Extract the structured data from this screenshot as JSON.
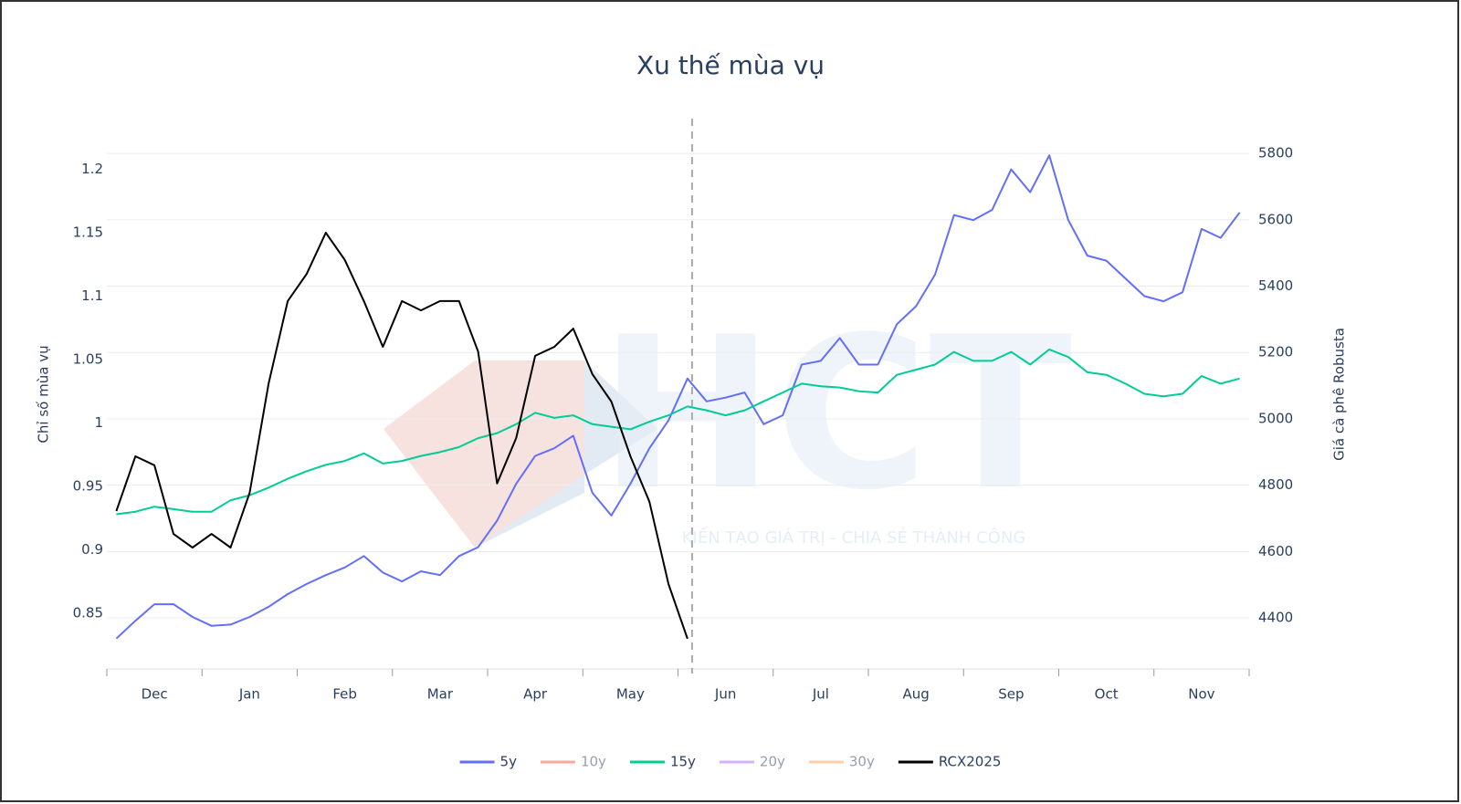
{
  "chart_data": {
    "type": "line",
    "title": "Xu thế mùa vụ",
    "y_label": "Chỉ số mùa vụ",
    "y2_label": "Giá cà phê Robusta",
    "watermark": {
      "logo": "HCT",
      "slogan": "KIẾN TẠO GIÁ TRỊ - CHIA SẺ THÀNH CÔNG"
    },
    "categories": [
      null,
      null,
      "Dec",
      null,
      null,
      null,
      null,
      "Jan",
      null,
      null,
      null,
      null,
      "Feb",
      null,
      null,
      null,
      null,
      "Mar",
      null,
      null,
      null,
      null,
      "Apr",
      null,
      null,
      null,
      null,
      "May",
      null,
      null,
      null,
      null,
      "Jun",
      null,
      null,
      null,
      null,
      "Jul",
      null,
      null,
      null,
      null,
      "Aug",
      null,
      null,
      null,
      null,
      "Sep",
      null,
      null,
      null,
      null,
      "Oct",
      null,
      null,
      null,
      null,
      "Nov",
      null,
      null
    ],
    "ylim": [
      0.806,
      1.24
    ],
    "yticks": [
      0.85,
      0.9,
      0.95,
      1,
      1.05,
      1.1,
      1.15,
      1.2
    ],
    "y2lim": [
      4246,
      5905
    ],
    "y2ticks": [
      4400,
      4600,
      4800,
      5000,
      5200,
      5400,
      5600,
      5800
    ],
    "grid": true,
    "legend": "bottom",
    "series": [
      {
        "name": "5y",
        "color": "#636efa",
        "visible": true,
        "values": [
          0.83,
          0.844,
          0.857,
          0.857,
          0.847,
          0.84,
          0.841,
          0.847,
          0.855,
          0.865,
          0.873,
          0.88,
          0.886,
          0.895,
          0.882,
          0.875,
          0.883,
          0.88,
          0.895,
          0.902,
          0.923,
          0.952,
          0.974,
          0.98,
          0.99,
          0.945,
          0.927,
          0.952,
          0.98,
          1.002,
          1.035,
          1.017,
          1.02,
          1.024,
          0.999,
          1.006,
          1.046,
          1.049,
          1.067,
          1.046,
          1.046,
          1.078,
          1.092,
          1.117,
          1.164,
          1.16,
          1.168,
          1.2,
          1.182,
          1.211,
          1.16,
          1.132,
          1.128,
          1.114,
          1.1,
          1.096,
          1.103,
          1.153,
          1.146,
          1.166
        ]
      },
      {
        "name": "10y",
        "color": "#ef553b",
        "visible": false,
        "values": [
          null,
          null,
          null,
          null,
          null,
          null,
          null,
          null,
          null,
          null,
          null,
          null,
          null,
          null,
          null,
          null,
          null,
          null,
          null,
          null,
          null,
          null,
          null,
          null,
          null,
          null,
          null,
          null,
          null,
          null,
          null,
          null,
          null,
          null,
          null,
          null,
          null,
          null,
          null,
          null,
          null,
          null,
          null,
          null,
          null,
          null,
          null,
          null,
          null,
          null,
          null,
          null,
          null,
          null,
          null,
          null,
          null,
          null,
          null,
          null
        ]
      },
      {
        "name": "15y",
        "color": "#00cc96",
        "visible": true,
        "values": [
          0.928,
          0.93,
          0.934,
          0.932,
          0.93,
          0.93,
          0.939,
          0.943,
          0.949,
          0.956,
          0.962,
          0.967,
          0.97,
          0.976,
          0.968,
          0.97,
          0.974,
          0.977,
          0.981,
          0.988,
          0.992,
          0.999,
          1.008,
          1.004,
          1.006,
          0.999,
          0.997,
          0.995,
          1.001,
          1.006,
          1.013,
          1.01,
          1.006,
          1.01,
          1.017,
          1.024,
          1.031,
          1.029,
          1.028,
          1.025,
          1.024,
          1.038,
          1.042,
          1.046,
          1.056,
          1.049,
          1.049,
          1.056,
          1.046,
          1.058,
          1.052,
          1.04,
          1.038,
          1.031,
          1.023,
          1.021,
          1.023,
          1.037,
          1.031,
          1.035
        ]
      },
      {
        "name": "20y",
        "color": "#ab63fa",
        "visible": false,
        "values": [
          null,
          null,
          null,
          null,
          null,
          null,
          null,
          null,
          null,
          null,
          null,
          null,
          null,
          null,
          null,
          null,
          null,
          null,
          null,
          null,
          null,
          null,
          null,
          null,
          null,
          null,
          null,
          null,
          null,
          null,
          null,
          null,
          null,
          null,
          null,
          null,
          null,
          null,
          null,
          null,
          null,
          null,
          null,
          null,
          null,
          null,
          null,
          null,
          null,
          null,
          null,
          null,
          null,
          null,
          null,
          null,
          null,
          null,
          null,
          null
        ]
      },
      {
        "name": "30y",
        "color": "#ffa15a",
        "visible": false,
        "values": [
          null,
          null,
          null,
          null,
          null,
          null,
          null,
          null,
          null,
          null,
          null,
          null,
          null,
          null,
          null,
          null,
          null,
          null,
          null,
          null,
          null,
          null,
          null,
          null,
          null,
          null,
          null,
          null,
          null,
          null,
          null,
          null,
          null,
          null,
          null,
          null,
          null,
          null,
          null,
          null,
          null,
          null,
          null,
          null,
          null,
          null,
          null,
          null,
          null,
          null,
          null,
          null,
          null,
          null,
          null,
          null,
          null,
          null,
          null,
          null
        ]
      },
      {
        "name": "RCX2025",
        "color": "#000000",
        "visible": true,
        "axis": "y2",
        "values": [
          4722,
          4887,
          4860,
          4653,
          4612,
          4653,
          4612,
          4777,
          5107,
          5355,
          5437,
          5561,
          5479,
          5355,
          5217,
          5355,
          5327,
          5355,
          5355,
          5203,
          4805,
          4942,
          5190,
          5217,
          5272,
          5135,
          5052,
          4887,
          4750,
          4502,
          4337,
          null,
          null,
          null,
          null,
          null,
          null,
          null,
          null,
          null,
          null,
          null,
          null,
          null,
          null,
          null,
          null,
          null,
          null,
          null,
          null,
          null,
          null,
          null,
          null,
          null,
          null,
          null,
          null,
          null
        ]
      }
    ]
  }
}
